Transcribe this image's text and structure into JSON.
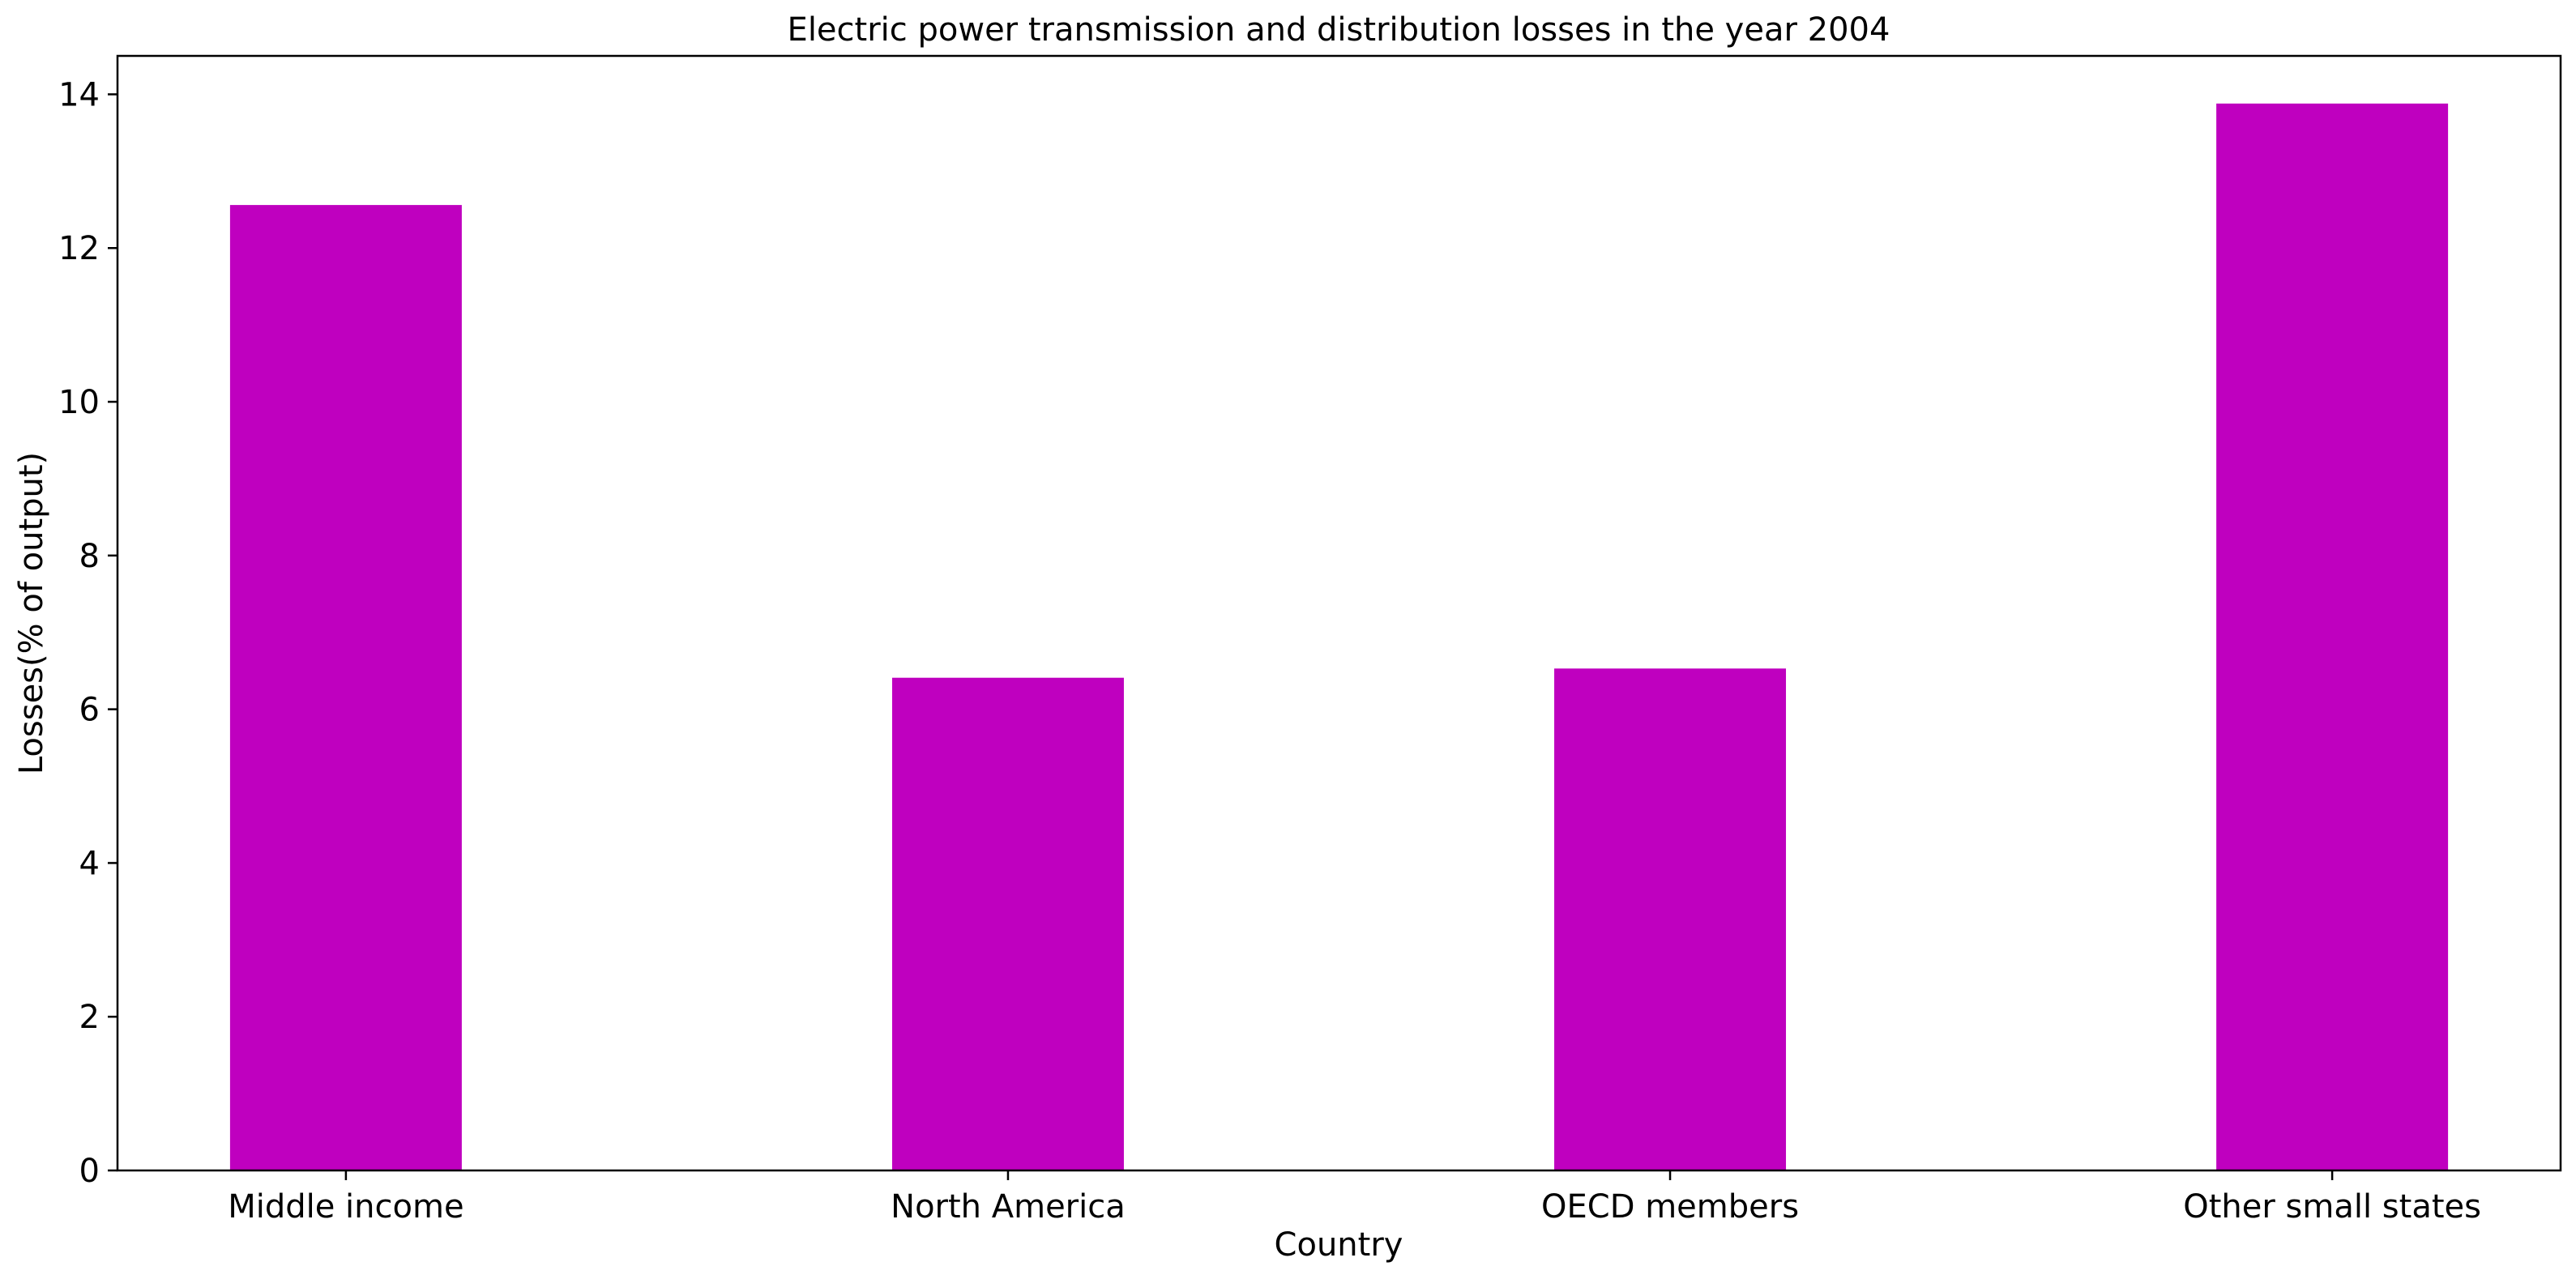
{
  "chart_data": {
    "type": "bar",
    "title": "Electric power transmission and distribution losses in the year 2004",
    "xlabel": "Country",
    "ylabel": "Losses(% of output)",
    "categories": [
      "Middle income",
      "North America",
      "OECD members",
      "Other small states"
    ],
    "values": [
      12.56,
      6.41,
      6.53,
      13.88
    ],
    "ylim": [
      0,
      14.5
    ],
    "yticks": [
      0,
      2,
      4,
      6,
      8,
      10,
      12,
      14
    ],
    "grid": false,
    "legend": "none",
    "bar_color": "#bf00bf"
  }
}
